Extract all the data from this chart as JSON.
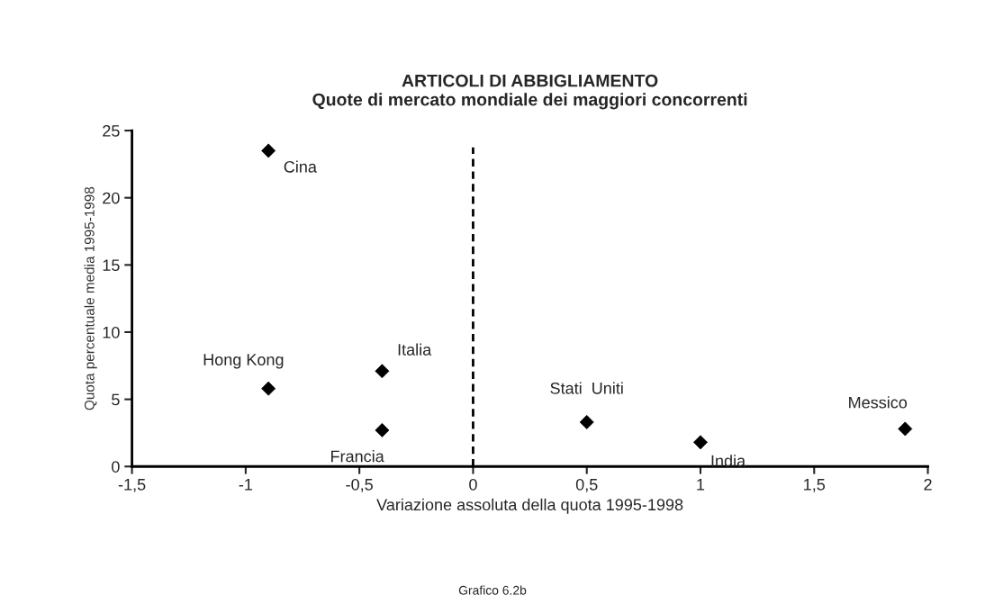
{
  "chart_data": {
    "type": "scatter",
    "title": "ARTICOLI DI ABBIGLIAMENTO\nQuote di mercato mondiale dei maggiori concorrenti",
    "xlabel": "Variazione assoluta della quota 1995-1998",
    "ylabel": "Quota percentuale media 1995-1998",
    "x": [
      -0.9,
      -0.9,
      -0.4,
      -0.4,
      0.5,
      1.0,
      1.9
    ],
    "series": [
      {
        "color": "#000000",
        "values": [
          23.5,
          5.8,
          7.1,
          2.7,
          3.3,
          1.8,
          2.8
        ]
      }
    ],
    "marker": "diamond",
    "grid": false,
    "legend": false,
    "xlim": [
      -1.5,
      2
    ],
    "xticks": [
      {
        "value": -1.5,
        "label": "-1,5"
      },
      -1,
      {
        "value": -0.5,
        "label": "-0,5"
      },
      0,
      {
        "value": 0.5,
        "label": "0,5"
      },
      1,
      {
        "value": 1.5,
        "label": "1,5"
      },
      2
    ],
    "ylim": [
      0,
      25
    ],
    "yticks": [
      0,
      5,
      10,
      15,
      20,
      25
    ],
    "ref_lines": [
      {
        "axis": "x",
        "value": 0,
        "line_style": "dashed",
        "color": "#000000"
      }
    ],
    "annotations": [
      {
        "text": "Cina",
        "x": -0.9,
        "y": 23.5
      },
      {
        "text": "Hong Kong",
        "x": -0.9,
        "y": 5.8
      },
      {
        "text": "Italia",
        "x": -0.4,
        "y": 7.1
      },
      {
        "text": "Francia",
        "x": -0.4,
        "y": 2.7
      },
      {
        "text": "Stati  Uniti",
        "x": 0.5,
        "y": 3.3
      },
      {
        "text": "India",
        "x": 1.0,
        "y": 1.8
      },
      {
        "text": "Messico",
        "x": 1.9,
        "y": 2.8
      },
      "Grafico 6.2b"
    ]
  }
}
